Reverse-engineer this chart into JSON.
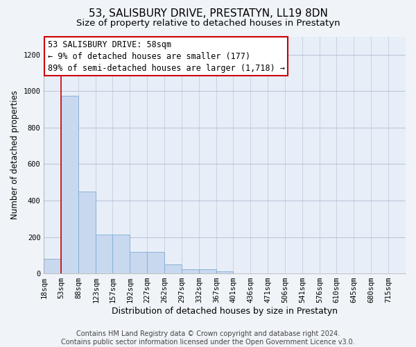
{
  "title": "53, SALISBURY DRIVE, PRESTATYN, LL19 8DN",
  "subtitle": "Size of property relative to detached houses in Prestatyn",
  "xlabel": "Distribution of detached houses by size in Prestatyn",
  "ylabel": "Number of detached properties",
  "bar_color": "#c8d8ee",
  "bar_edge_color": "#7eacd4",
  "annotation_box_color": "#cc0000",
  "annotation_text": "53 SALISBURY DRIVE: 58sqm\n← 9% of detached houses are smaller (177)\n89% of semi-detached houses are larger (1,718) →",
  "subject_line_color": "#cc0000",
  "subject_bin_index": 1,
  "categories": [
    "18sqm",
    "53sqm",
    "88sqm",
    "123sqm",
    "157sqm",
    "192sqm",
    "227sqm",
    "262sqm",
    "297sqm",
    "332sqm",
    "367sqm",
    "401sqm",
    "436sqm",
    "471sqm",
    "506sqm",
    "541sqm",
    "576sqm",
    "610sqm",
    "645sqm",
    "680sqm",
    "715sqm"
  ],
  "bin_edges": [
    18,
    53,
    88,
    123,
    157,
    192,
    227,
    262,
    297,
    332,
    367,
    401,
    436,
    471,
    506,
    541,
    576,
    610,
    645,
    680,
    715,
    750
  ],
  "values": [
    80,
    975,
    450,
    215,
    215,
    120,
    120,
    48,
    22,
    22,
    12,
    0,
    0,
    0,
    0,
    0,
    0,
    0,
    0,
    0,
    0
  ],
  "ylim": [
    0,
    1300
  ],
  "yticks": [
    0,
    200,
    400,
    600,
    800,
    1000,
    1200
  ],
  "background_color": "#f0f4f8",
  "plot_bg_color": "#e8eef8",
  "footer_text": "Contains HM Land Registry data © Crown copyright and database right 2024.\nContains public sector information licensed under the Open Government Licence v3.0.",
  "title_fontsize": 11,
  "subtitle_fontsize": 9.5,
  "xlabel_fontsize": 9,
  "ylabel_fontsize": 8.5,
  "tick_fontsize": 7.5,
  "annotation_fontsize": 8.5,
  "footer_fontsize": 7
}
